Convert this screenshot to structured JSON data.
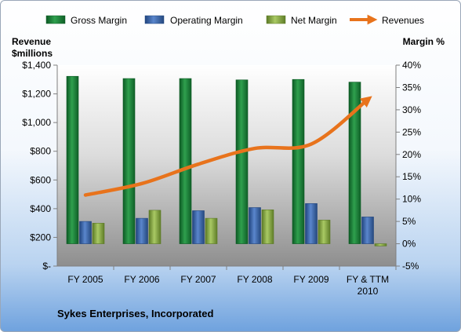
{
  "colors": {
    "gross_margin": "#1f8a3c",
    "operating_margin": "#3b66b0",
    "net_margin": "#8fb04a",
    "revenues": "#e8731c"
  },
  "chart_data": {
    "type": "bar",
    "title": "Sykes Enterprises, Incorporated",
    "categories": [
      "FY 2005",
      "FY 2006",
      "FY 2007",
      "FY 2008",
      "FY 2009",
      "FY & TTM 2010"
    ],
    "y_left": {
      "label_line1": "Revenue",
      "label_line2": "$millions",
      "ylim": [
        0,
        1400
      ],
      "ticks": [
        0,
        200,
        400,
        600,
        800,
        1000,
        1200,
        1400
      ],
      "tick_labels": [
        "$-",
        "$200",
        "$400",
        "$600",
        "$800",
        "$1,000",
        "$1,200",
        "$1,400"
      ]
    },
    "y_right": {
      "label": "Margin  %",
      "ylim": [
        -5,
        40
      ],
      "ticks": [
        -5,
        0,
        5,
        10,
        15,
        20,
        25,
        30,
        35,
        40
      ],
      "tick_labels": [
        "-5%",
        "0%",
        "5%",
        "10%",
        "15%",
        "20%",
        "25%",
        "30%",
        "35%",
        "40%"
      ]
    },
    "series": [
      {
        "name": "Gross Margin",
        "type": "bar",
        "axis": "right",
        "values": [
          37.5,
          37.0,
          37.0,
          36.7,
          36.8,
          36.2
        ]
      },
      {
        "name": "Operating Margin",
        "type": "bar",
        "axis": "right",
        "values": [
          5.0,
          5.7,
          7.4,
          8.1,
          9.0,
          6.0
        ]
      },
      {
        "name": "Net Margin",
        "type": "bar",
        "axis": "right",
        "values": [
          4.6,
          7.5,
          5.7,
          7.6,
          5.3,
          -0.5
        ]
      },
      {
        "name": "Revenues",
        "type": "line",
        "axis": "left",
        "values": [
          495,
          575,
          710,
          820,
          850,
          1160
        ]
      }
    ],
    "legend_position": "top",
    "grid": false
  }
}
